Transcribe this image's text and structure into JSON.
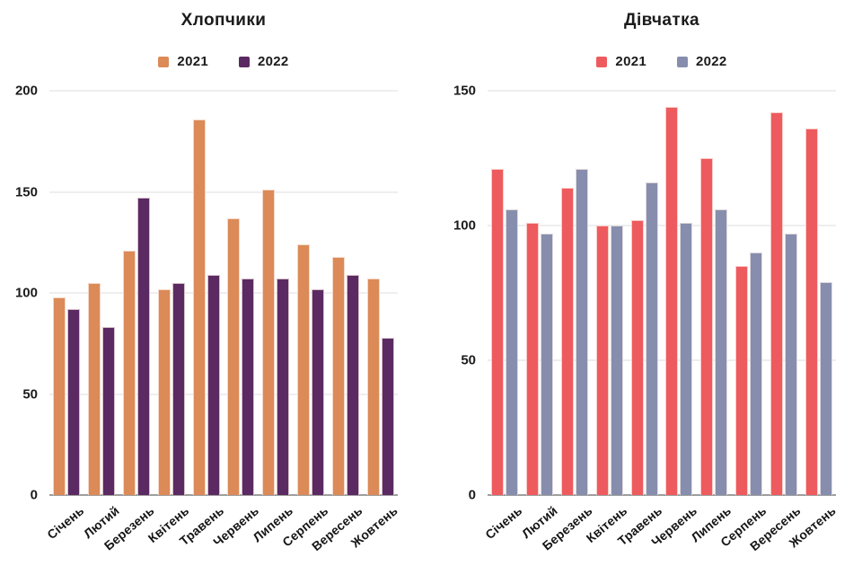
{
  "page": {
    "background": "#ffffff",
    "text_color": "#1b1b1b"
  },
  "colors": {
    "grid": "#dcdcdc",
    "axis": "#9e9e9e",
    "boys_2021": "#DB8A58",
    "boys_2022": "#5B2A62",
    "girls_2021": "#ED5B5E",
    "girls_2022": "#878EAD"
  },
  "chart_data": [
    {
      "type": "bar",
      "title": "Хлопчики",
      "categories": [
        "Січень",
        "Лютий",
        "Березень",
        "Квітень",
        "Травень",
        "Червень",
        "Липень",
        "Серпень",
        "Вересень",
        "Жовтень"
      ],
      "series": [
        {
          "name": "2021",
          "color": "#DB8A58",
          "values": [
            98,
            105,
            121,
            102,
            186,
            137,
            151,
            124,
            118,
            107
          ]
        },
        {
          "name": "2022",
          "color": "#5B2A62",
          "values": [
            92,
            83,
            147,
            105,
            109,
            107,
            107,
            102,
            109,
            78
          ]
        }
      ],
      "xlabel": "",
      "ylabel": "",
      "ylim": [
        0,
        200
      ],
      "ytick_step": 50,
      "yticks": [
        0,
        50,
        100,
        150,
        200
      ],
      "grid": true,
      "legend_position": "top"
    },
    {
      "type": "bar",
      "title": "Дівчатка",
      "categories": [
        "Січень",
        "Лютий",
        "Березень",
        "Квітень",
        "Травень",
        "Червень",
        "Липень",
        "Серпень",
        "Вересень",
        "Жовтень"
      ],
      "series": [
        {
          "name": "2021",
          "color": "#ED5B5E",
          "values": [
            121,
            101,
            114,
            100,
            102,
            144,
            125,
            85,
            142,
            136
          ]
        },
        {
          "name": "2022",
          "color": "#878EAD",
          "values": [
            106,
            97,
            121,
            100,
            116,
            101,
            106,
            90,
            97,
            79
          ]
        }
      ],
      "xlabel": "",
      "ylabel": "",
      "ylim": [
        0,
        150
      ],
      "ytick_step": 50,
      "yticks": [
        0,
        50,
        100,
        150
      ],
      "grid": true,
      "legend_position": "top"
    }
  ]
}
